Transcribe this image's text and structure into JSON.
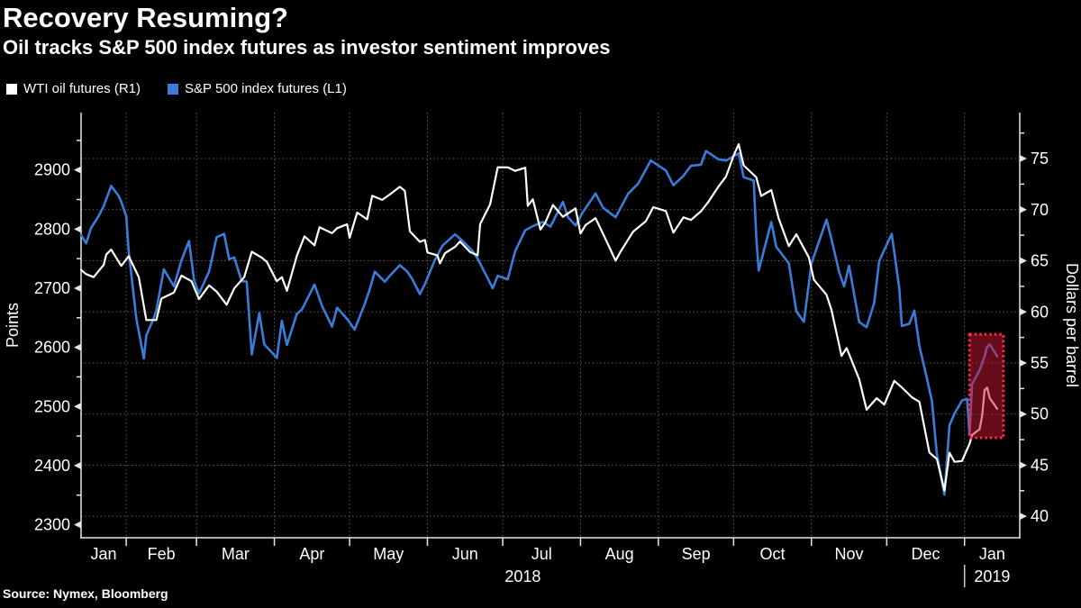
{
  "title": "Recovery Resuming?",
  "subtitle": "Oil tracks S&P 500 index futures as investor sentiment improves",
  "source": "Source: Nymex, Bloomberg",
  "legend": [
    {
      "label": "WTI oil futures (R1)",
      "color": "#ffffff"
    },
    {
      "label": "S&P 500 index futures (L1)",
      "color": "#3a7dd8"
    }
  ],
  "colors": {
    "background": "#000000",
    "axis": "#e6e6e6",
    "grid": "#5f5f5f",
    "text": "#ffffff",
    "spx_blue": "#3a7dd8",
    "wti_white": "#ffffff",
    "highlight_fill": "rgba(204,22,51,0.5)",
    "highlight_border": "#ff2b3d"
  },
  "chart_data": {
    "type": "line",
    "title": "Recovery Resuming?",
    "subtitle": "Oil tracks S&P 500 index futures as investor sentiment improves",
    "x_unit": "day index, Jan 1 2018 = 1 (2019 dates continue past 365)",
    "x_range_days": [
      14,
      388
    ],
    "grid": {
      "horizontal_follows": "right_axis",
      "vertical_follows": "month_starts"
    },
    "legend_position": "top-left",
    "left_axis": {
      "title": "Points",
      "ticks": [
        2300,
        2400,
        2500,
        2600,
        2700,
        2800,
        2900
      ],
      "minor_ticks": [
        2350,
        2450,
        2550,
        2650,
        2750,
        2850,
        2950
      ],
      "range": [
        2278,
        2997
      ]
    },
    "right_axis": {
      "title": "Dollars per barrel",
      "ticks": [
        40,
        45,
        50,
        55,
        60,
        65,
        70,
        75
      ],
      "minor_ticks": [
        42.5,
        47.5,
        52.5,
        57.5,
        62.5,
        67.5,
        72.5,
        77.5
      ],
      "range": [
        37.9,
        79.5
      ]
    },
    "months": [
      {
        "label": "Jan",
        "start": 1
      },
      {
        "label": "Feb",
        "start": 32
      },
      {
        "label": "Mar",
        "start": 60
      },
      {
        "label": "Apr",
        "start": 91
      },
      {
        "label": "May",
        "start": 121
      },
      {
        "label": "Jun",
        "start": 152
      },
      {
        "label": "Jul",
        "start": 182
      },
      {
        "label": "Aug",
        "start": 213
      },
      {
        "label": "Sep",
        "start": 244
      },
      {
        "label": "Oct",
        "start": 274
      },
      {
        "label": "Nov",
        "start": 305
      },
      {
        "label": "Dec",
        "start": 335
      },
      {
        "label": "Jan",
        "start": 366
      }
    ],
    "year_labels": [
      {
        "text": "2018",
        "from_day": 1,
        "to_day": 366,
        "divider": false
      },
      {
        "text": "2019",
        "from_day": 366,
        "to_day": 397,
        "divider": true
      }
    ],
    "series": [
      {
        "name": "S&P 500 index futures (L1)",
        "axis": "left",
        "color": "#3a7dd8",
        "width": 2.6,
        "points": [
          [
            14,
            2790
          ],
          [
            16,
            2776
          ],
          [
            18,
            2802
          ],
          [
            21,
            2822
          ],
          [
            23,
            2839
          ],
          [
            26,
            2873
          ],
          [
            29,
            2856
          ],
          [
            30,
            2846
          ],
          [
            32,
            2822
          ],
          [
            33,
            2762
          ],
          [
            36,
            2649
          ],
          [
            39,
            2581
          ],
          [
            40,
            2620
          ],
          [
            43,
            2650
          ],
          [
            44,
            2663
          ],
          [
            47,
            2732
          ],
          [
            51,
            2703
          ],
          [
            54,
            2747
          ],
          [
            57,
            2780
          ],
          [
            59,
            2714
          ],
          [
            61,
            2691
          ],
          [
            65,
            2728
          ],
          [
            68,
            2786
          ],
          [
            71,
            2792
          ],
          [
            73,
            2749
          ],
          [
            75,
            2752
          ],
          [
            78,
            2712
          ],
          [
            80,
            2711
          ],
          [
            82,
            2588
          ],
          [
            85,
            2658
          ],
          [
            87,
            2605
          ],
          [
            92,
            2582
          ],
          [
            94,
            2645
          ],
          [
            96,
            2604
          ],
          [
            100,
            2657
          ],
          [
            102,
            2664
          ],
          [
            107,
            2706
          ],
          [
            110,
            2670
          ],
          [
            114,
            2635
          ],
          [
            116,
            2667
          ],
          [
            120,
            2648
          ],
          [
            123,
            2630
          ],
          [
            127,
            2673
          ],
          [
            129,
            2698
          ],
          [
            131,
            2728
          ],
          [
            135,
            2711
          ],
          [
            137,
            2721
          ],
          [
            141,
            2739
          ],
          [
            144,
            2728
          ],
          [
            146,
            2715
          ],
          [
            149,
            2690
          ],
          [
            151,
            2707
          ],
          [
            155,
            2748
          ],
          [
            158,
            2772
          ],
          [
            163,
            2791
          ],
          [
            166,
            2780
          ],
          [
            170,
            2763
          ],
          [
            172,
            2750
          ],
          [
            176,
            2717
          ],
          [
            178,
            2700
          ],
          [
            180,
            2721
          ],
          [
            184,
            2715
          ],
          [
            187,
            2763
          ],
          [
            191,
            2798
          ],
          [
            194,
            2805
          ],
          [
            198,
            2812
          ],
          [
            201,
            2804
          ],
          [
            206,
            2846
          ],
          [
            208,
            2820
          ],
          [
            211,
            2806
          ],
          [
            214,
            2829
          ],
          [
            219,
            2860
          ],
          [
            222,
            2836
          ],
          [
            227,
            2820
          ],
          [
            232,
            2860
          ],
          [
            236,
            2877
          ],
          [
            241,
            2916
          ],
          [
            247,
            2899
          ],
          [
            250,
            2874
          ],
          [
            254,
            2890
          ],
          [
            257,
            2907
          ],
          [
            261,
            2909
          ],
          [
            263,
            2932
          ],
          [
            268,
            2918
          ],
          [
            271,
            2916
          ],
          [
            276,
            2928
          ],
          [
            278,
            2888
          ],
          [
            282,
            2882
          ],
          [
            283,
            2787
          ],
          [
            284,
            2730
          ],
          [
            289,
            2812
          ],
          [
            291,
            2770
          ],
          [
            296,
            2742
          ],
          [
            299,
            2661
          ],
          [
            302,
            2643
          ],
          [
            305,
            2742
          ],
          [
            311,
            2816
          ],
          [
            313,
            2783
          ],
          [
            316,
            2728
          ],
          [
            318,
            2703
          ],
          [
            320,
            2738
          ],
          [
            324,
            2643
          ],
          [
            327,
            2634
          ],
          [
            330,
            2675
          ],
          [
            332,
            2746
          ],
          [
            337,
            2792
          ],
          [
            340,
            2700
          ],
          [
            341,
            2636
          ],
          [
            344,
            2640
          ],
          [
            346,
            2662
          ],
          [
            348,
            2602
          ],
          [
            351,
            2548
          ],
          [
            353,
            2509
          ],
          [
            355,
            2418
          ],
          [
            358,
            2351
          ],
          [
            360,
            2468
          ],
          [
            362,
            2488
          ],
          [
            365,
            2510
          ],
          [
            367,
            2513
          ],
          [
            368,
            2452
          ],
          [
            369,
            2538
          ],
          [
            372,
            2561
          ],
          [
            374,
            2585
          ],
          [
            375,
            2601
          ],
          [
            376,
            2605
          ],
          [
            379,
            2585
          ]
        ]
      },
      {
        "name": "WTI oil futures (R1)",
        "axis": "right",
        "color": "#ffffff",
        "width": 2.2,
        "points": [
          [
            14,
            64.1
          ],
          [
            16,
            63.7
          ],
          [
            19,
            63.4
          ],
          [
            23,
            64.6
          ],
          [
            24,
            65.6
          ],
          [
            26,
            66.1
          ],
          [
            30,
            64.5
          ],
          [
            33,
            65.45
          ],
          [
            37,
            63.4
          ],
          [
            40,
            59.2
          ],
          [
            44,
            59.2
          ],
          [
            46,
            61.3
          ],
          [
            51,
            61.9
          ],
          [
            54,
            63.55
          ],
          [
            58,
            63.0
          ],
          [
            61,
            61.25
          ],
          [
            65,
            62.6
          ],
          [
            68,
            62.0
          ],
          [
            72,
            60.7
          ],
          [
            75,
            62.3
          ],
          [
            79,
            63.4
          ],
          [
            82,
            65.88
          ],
          [
            86,
            65.3
          ],
          [
            88,
            64.9
          ],
          [
            92,
            63.0
          ],
          [
            94,
            63.4
          ],
          [
            96,
            62.06
          ],
          [
            100,
            65.51
          ],
          [
            103,
            67.39
          ],
          [
            107,
            66.52
          ],
          [
            109,
            68.29
          ],
          [
            114,
            67.7
          ],
          [
            116,
            68.19
          ],
          [
            120,
            68.57
          ],
          [
            121,
            67.25
          ],
          [
            124,
            69.72
          ],
          [
            128,
            69.06
          ],
          [
            130,
            71.36
          ],
          [
            134,
            70.96
          ],
          [
            137,
            71.49
          ],
          [
            141,
            72.24
          ],
          [
            143,
            71.84
          ],
          [
            145,
            67.88
          ],
          [
            149,
            66.85
          ],
          [
            151,
            67.04
          ],
          [
            152,
            65.81
          ],
          [
            156,
            65.52
          ],
          [
            157,
            64.75
          ],
          [
            159,
            65.74
          ],
          [
            163,
            66.36
          ],
          [
            165,
            66.89
          ],
          [
            169,
            65.85
          ],
          [
            172,
            65.54
          ],
          [
            173,
            68.58
          ],
          [
            177,
            70.53
          ],
          [
            180,
            74.15
          ],
          [
            184,
            74.14
          ],
          [
            187,
            73.8
          ],
          [
            191,
            74.11
          ],
          [
            192,
            70.38
          ],
          [
            194,
            71.01
          ],
          [
            197,
            68.06
          ],
          [
            199,
            68.76
          ],
          [
            202,
            70.46
          ],
          [
            206,
            69.3
          ],
          [
            211,
            70.13
          ],
          [
            213,
            67.66
          ],
          [
            215,
            68.49
          ],
          [
            219,
            69.17
          ],
          [
            222,
            67.63
          ],
          [
            227,
            65.01
          ],
          [
            229,
            65.91
          ],
          [
            234,
            67.86
          ],
          [
            239,
            68.87
          ],
          [
            242,
            70.25
          ],
          [
            247,
            69.87
          ],
          [
            250,
            67.75
          ],
          [
            254,
            69.25
          ],
          [
            257,
            68.99
          ],
          [
            261,
            69.85
          ],
          [
            264,
            70.78
          ],
          [
            268,
            72.28
          ],
          [
            271,
            73.25
          ],
          [
            274,
            75.3
          ],
          [
            276,
            76.41
          ],
          [
            278,
            74.34
          ],
          [
            283,
            73.17
          ],
          [
            285,
            71.34
          ],
          [
            289,
            71.92
          ],
          [
            292,
            69.12
          ],
          [
            296,
            66.43
          ],
          [
            299,
            67.59
          ],
          [
            304,
            65.31
          ],
          [
            306,
            63.14
          ],
          [
            311,
            61.67
          ],
          [
            313,
            60.19
          ],
          [
            317,
            55.69
          ],
          [
            319,
            56.46
          ],
          [
            324,
            53.43
          ],
          [
            327,
            50.42
          ],
          [
            331,
            51.56
          ],
          [
            334,
            50.93
          ],
          [
            338,
            53.25
          ],
          [
            341,
            52.61
          ],
          [
            345,
            51.65
          ],
          [
            348,
            51.2
          ],
          [
            352,
            46.24
          ],
          [
            355,
            45.59
          ],
          [
            358,
            42.53
          ],
          [
            360,
            46.22
          ],
          [
            362,
            45.33
          ],
          [
            365,
            45.41
          ],
          [
            367,
            46.54
          ],
          [
            368,
            47.09
          ],
          [
            369,
            47.96
          ],
          [
            372,
            48.52
          ],
          [
            373,
            49.78
          ],
          [
            374,
            52.36
          ],
          [
            375,
            52.59
          ],
          [
            376,
            51.59
          ],
          [
            379,
            50.51
          ]
        ]
      }
    ],
    "highlight_box": {
      "day_start": 368,
      "day_end": 381.5,
      "points_top": 2622,
      "points_bottom": 2447,
      "fill": "rgba(204,22,51,0.5)",
      "border": "#ff2b3d"
    }
  }
}
